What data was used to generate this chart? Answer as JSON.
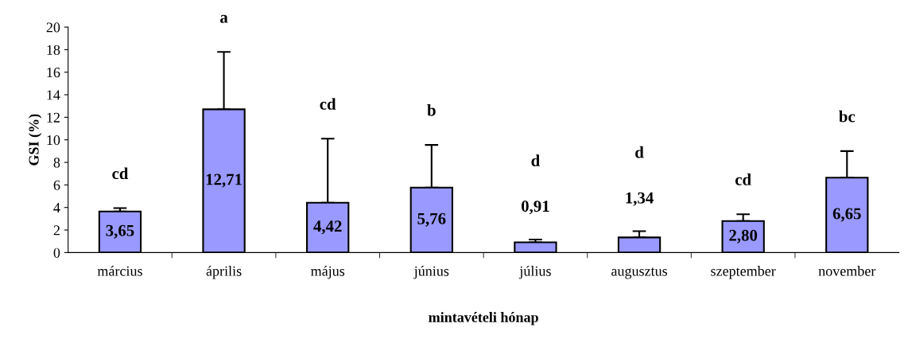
{
  "chart_data": {
    "type": "bar",
    "xlabel": "mintavételi hónap",
    "ylabel": "GSI (%)",
    "categories": [
      "március",
      "április",
      "május",
      "június",
      "július",
      "augusztus",
      "szeptember",
      "november"
    ],
    "values": [
      3.65,
      12.71,
      4.42,
      5.76,
      0.91,
      1.34,
      2.8,
      6.65
    ],
    "value_labels": [
      "3,65",
      "12,71",
      "4,42",
      "5,76",
      "0,91",
      "1,34",
      "2,80",
      "6,65"
    ],
    "errors": [
      [
        3.65,
        3.94
      ],
      [
        12.71,
        17.8
      ],
      [
        4.42,
        10.1
      ],
      [
        5.76,
        9.55
      ],
      [
        0.91,
        1.16
      ],
      [
        1.34,
        1.9
      ],
      [
        2.8,
        3.4
      ],
      [
        6.65,
        9.0
      ]
    ],
    "color": "#9999ff",
    "ylim": [
      0,
      20
    ],
    "yticks": [
      0,
      2,
      4,
      6,
      8,
      10,
      12,
      14,
      16,
      18,
      20
    ],
    "grid": false,
    "legend": false,
    "annotations": [
      "cd",
      "a",
      "cd",
      "b",
      "d",
      "d",
      "cd",
      "bc"
    ]
  }
}
